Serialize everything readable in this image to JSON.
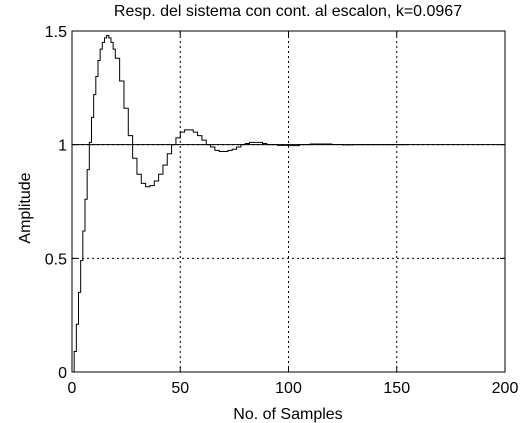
{
  "chart_data": {
    "type": "line",
    "title": "Resp. del sistema con cont. al escalon, k=0.0967",
    "xlabel": "No. of Samples",
    "ylabel": "Amplitude",
    "xlim": [
      0,
      200
    ],
    "ylim": [
      0,
      1.5
    ],
    "x_ticks": [
      0,
      50,
      100,
      150,
      200
    ],
    "x_tick_labels": [
      "0",
      "50",
      "100",
      "150",
      "200"
    ],
    "y_ticks": [
      0,
      0.5,
      1,
      1.5
    ],
    "y_tick_labels": [
      "0",
      "0.5",
      "1",
      "1.5"
    ],
    "grid": true,
    "grid_style": "dotted",
    "line_color": "#000000",
    "reference_line": 1,
    "step_style": "stairs",
    "series": [
      {
        "points": [
          [
            0,
            0
          ],
          [
            1,
            0.09
          ],
          [
            2,
            0.21
          ],
          [
            3,
            0.35
          ],
          [
            4,
            0.49
          ],
          [
            5,
            0.62
          ],
          [
            6,
            0.76
          ],
          [
            7,
            0.89
          ],
          [
            8,
            1.01
          ],
          [
            9,
            1.12
          ],
          [
            10,
            1.22
          ],
          [
            11,
            1.3
          ],
          [
            12,
            1.37
          ],
          [
            13,
            1.42
          ],
          [
            14,
            1.45
          ],
          [
            15,
            1.47
          ],
          [
            16,
            1.48
          ],
          [
            17,
            1.47
          ],
          [
            18,
            1.45
          ],
          [
            19,
            1.42
          ],
          [
            20,
            1.38
          ],
          [
            22,
            1.28
          ],
          [
            24,
            1.16
          ],
          [
            26,
            1.04
          ],
          [
            28,
            0.94
          ],
          [
            30,
            0.87
          ],
          [
            32,
            0.83
          ],
          [
            34,
            0.815
          ],
          [
            36,
            0.82
          ],
          [
            38,
            0.84
          ],
          [
            40,
            0.87
          ],
          [
            42,
            0.91
          ],
          [
            44,
            0.96
          ],
          [
            46,
            1.0
          ],
          [
            48,
            1.03
          ],
          [
            50,
            1.055
          ],
          [
            52,
            1.065
          ],
          [
            54,
            1.065
          ],
          [
            56,
            1.055
          ],
          [
            58,
            1.04
          ],
          [
            60,
            1.02
          ],
          [
            62,
            1.0
          ],
          [
            64,
            0.99
          ],
          [
            66,
            0.975
          ],
          [
            68,
            0.97
          ],
          [
            70,
            0.97
          ],
          [
            72,
            0.975
          ],
          [
            74,
            0.98
          ],
          [
            76,
            0.99
          ],
          [
            78,
            1.0
          ],
          [
            80,
            1.005
          ],
          [
            82,
            1.01
          ],
          [
            84,
            1.01
          ],
          [
            86,
            1.01
          ],
          [
            88,
            1.005
          ],
          [
            90,
            1.0
          ],
          [
            95,
            0.997
          ],
          [
            100,
            0.996
          ],
          [
            105,
            1.0
          ],
          [
            110,
            1.003
          ],
          [
            115,
            1.003
          ],
          [
            120,
            1.001
          ],
          [
            125,
            0.999
          ],
          [
            130,
            1.0
          ],
          [
            140,
            1.0
          ],
          [
            150,
            1.0
          ],
          [
            155,
            1.0
          ]
        ]
      }
    ]
  }
}
